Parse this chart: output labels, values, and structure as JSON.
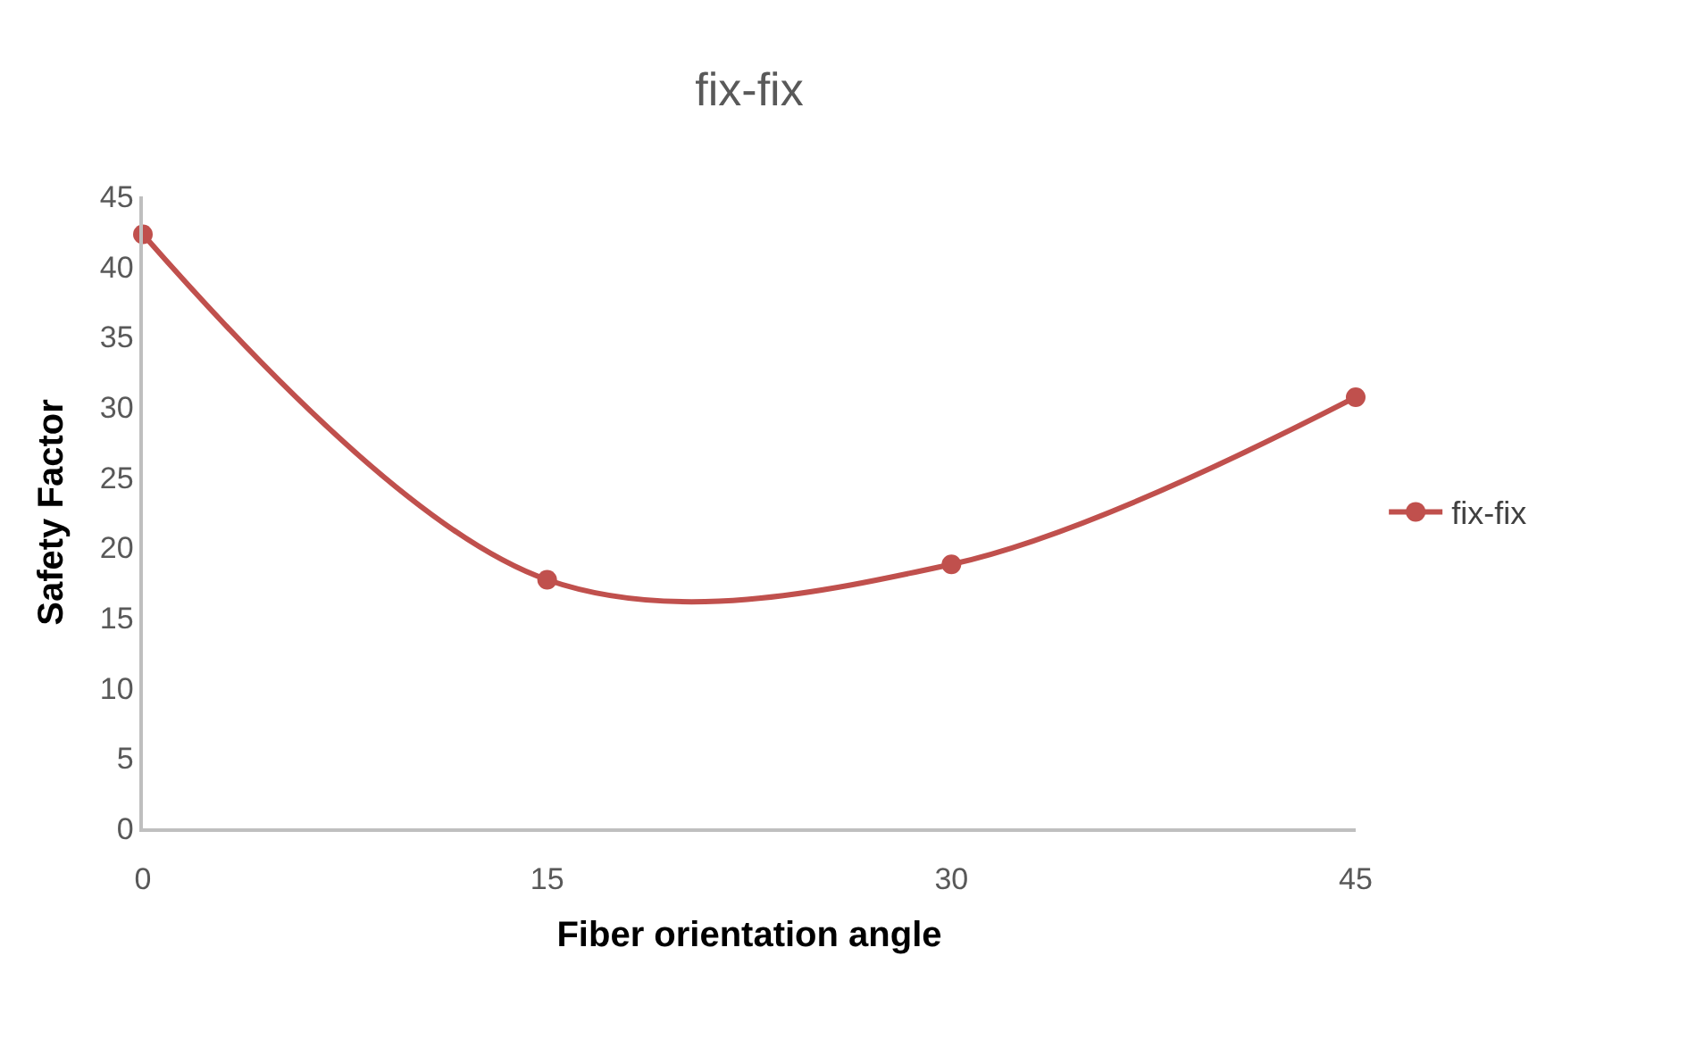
{
  "chart_data": {
    "type": "line",
    "title": "fix-fix",
    "xlabel": "Fiber orientation angle",
    "ylabel": "Safety Factor",
    "categories": [
      "0",
      "15",
      "30",
      "45"
    ],
    "series": [
      {
        "name": "fix-fix",
        "color": "#c0504d",
        "values": [
          42.3,
          17.7,
          18.8,
          30.7
        ]
      }
    ],
    "ylim": [
      0,
      45
    ],
    "yticks": [
      0,
      5,
      10,
      15,
      20,
      25,
      30,
      35,
      40,
      45
    ],
    "grid": false,
    "legend": "right",
    "marker": "circle",
    "line_style": "solid"
  }
}
